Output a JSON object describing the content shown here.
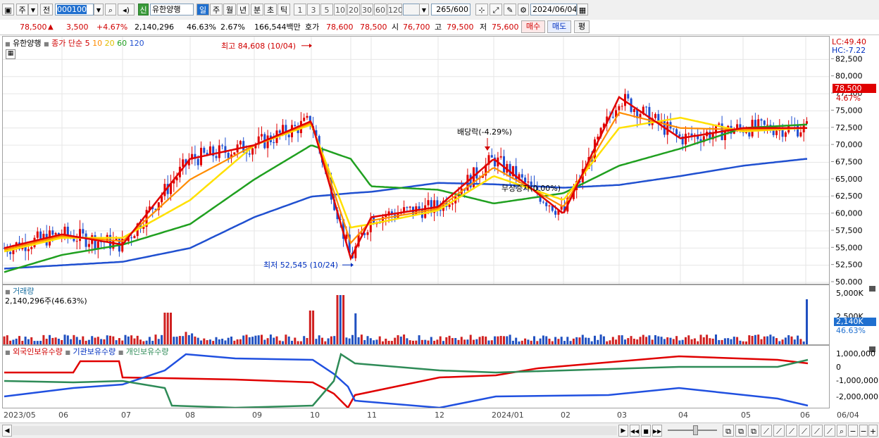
{
  "toolbar": {
    "type_label": "주",
    "all_label": "전",
    "code": "000100",
    "new_badge": "신",
    "stock_name": "유한양행",
    "periods": [
      "일",
      "주",
      "월",
      "년",
      "분",
      "초",
      "틱"
    ],
    "selected_period": "일",
    "intervals": [
      "1",
      "3",
      "5",
      "10",
      "20",
      "30",
      "60",
      "120"
    ],
    "count_value": "265",
    "count_max": "/600",
    "date": "2024/06/04"
  },
  "quote": {
    "price": "78,500",
    "change": "3,500",
    "change_pct": "+4.67%",
    "volume": "2,140,296",
    "volume_ratio": "46.63%",
    "turnover": "2.67%",
    "amount": "166,544백만",
    "ask_label": "호가",
    "ask": "78,600",
    "bid": "78,500",
    "open_label": "시",
    "open": "76,700",
    "high_label": "고",
    "high": "79,500",
    "low_label": "저",
    "low": "75,600",
    "buy_label": "매수",
    "sell_label": "매도",
    "avg_label": "평"
  },
  "legend": {
    "name": "유한양행",
    "ma_prefix": "종가 단순",
    "ma_periods": [
      "5",
      "10",
      "20",
      "60",
      "120"
    ],
    "lc": "LC:49.40",
    "hc": "HC:-7.22",
    "current_price": "78,500",
    "current_pct": "4.67%",
    "high_annot": "최고 84,608 (10/04)",
    "low_annot": "최저 52,545 (10/24)",
    "div_annot": "배당락(-4.29%)",
    "bonus_annot": "무상증자(0.00%)"
  },
  "volume_panel": {
    "title": "거래량",
    "value_text": "2,140,296주(46.63%)",
    "axis_ticks": [
      "5,000K",
      "2,500K"
    ],
    "current": "2,140K",
    "current_pct": "46.63%"
  },
  "holdings_panel": {
    "foreign": "외국인보유수량",
    "inst": "기관보유수량",
    "indiv": "개인보유수량",
    "axis_ticks": [
      "1,000,000",
      "0",
      "-1,000,000",
      "-2,000,000"
    ]
  },
  "x_labels": [
    "2023/05",
    "06",
    "07",
    "08",
    "09",
    "10",
    "11",
    "12",
    "2024/01",
    "02",
    "03",
    "04",
    "05",
    "06",
    "06/04"
  ],
  "chart_data": {
    "type": "line",
    "title": "유한양행",
    "ylim": [
      50000,
      85000
    ],
    "y_ticks": [
      82500,
      80000,
      77500,
      75000,
      72500,
      70000,
      67500,
      65000,
      62500,
      60000,
      57500,
      55000,
      52500,
      50000
    ],
    "x": [
      "2023-05",
      "2023-06",
      "2023-07",
      "2023-08",
      "2023-09",
      "2023-10-04",
      "2023-10-24",
      "2023-11",
      "2023-12",
      "2024-01",
      "2024-02",
      "2024-03",
      "2024-04",
      "2024-05",
      "2024-06-04"
    ],
    "series": [
      {
        "name": "5",
        "color": "#e00000",
        "values": [
          55000,
          57000,
          55500,
          68000,
          70000,
          73500,
          53500,
          59500,
          61000,
          68000,
          60000,
          77000,
          71000,
          72500,
          72500
        ]
      },
      {
        "name": "20",
        "color": "#ffe000",
        "values": [
          54500,
          56500,
          56500,
          62000,
          70000,
          73000,
          58000,
          58500,
          60500,
          65500,
          62000,
          72500,
          74000,
          72000,
          72500
        ]
      },
      {
        "name": "60",
        "color": "#20a020",
        "values": [
          51500,
          54000,
          55500,
          58500,
          65000,
          70000,
          68000,
          64000,
          63500,
          61500,
          63000,
          67000,
          69500,
          72500,
          73000
        ]
      },
      {
        "name": "120",
        "color": "#2050d0",
        "values": [
          52000,
          52500,
          53000,
          55000,
          59500,
          62500,
          63000,
          63200,
          64500,
          64300,
          63800,
          64200,
          65500,
          67000,
          68000
        ]
      }
    ],
    "high": 84608,
    "low": 52545,
    "last": 78500,
    "volume_last": 2140296
  }
}
